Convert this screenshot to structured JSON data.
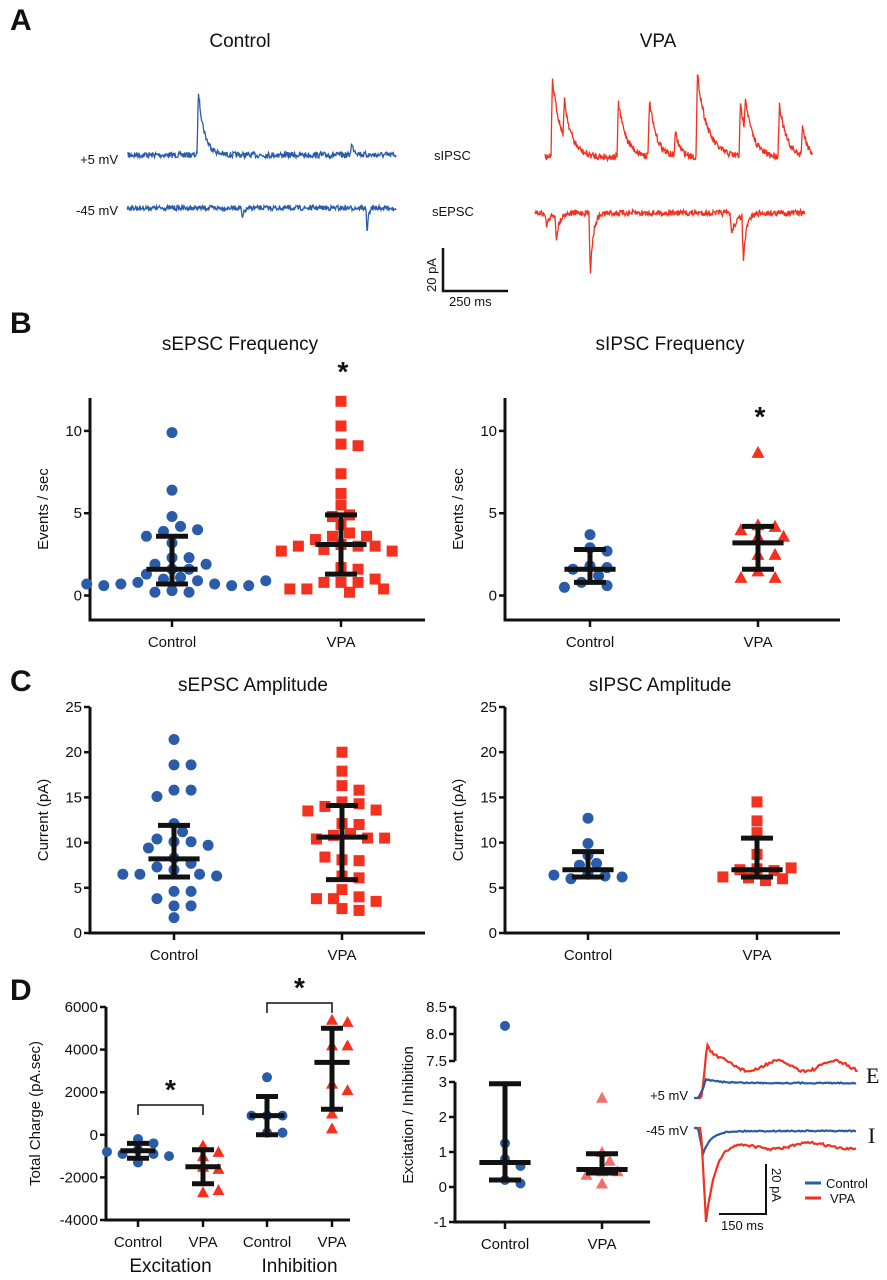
{
  "colors": {
    "control": "#2a5caa",
    "vpa": "#f4301e",
    "vpa_light": "#f07070",
    "axis": "#111111"
  },
  "panel_labels": [
    "A",
    "B",
    "C",
    "D"
  ],
  "panelA": {
    "control_title": "Control",
    "vpa_title": "VPA",
    "row_labels": [
      "+5 mV",
      "-45 mV"
    ],
    "trace_labels": [
      "sIPSC",
      "sEPSC"
    ],
    "scalebar": {
      "y_label": "20 pA",
      "x_label": "250 ms"
    }
  },
  "chart_data": [
    {
      "id": "sepsc_freq",
      "type": "scatter",
      "title": "sEPSC Frequency",
      "ylabel": "Events / sec",
      "ylim": [
        -1,
        12
      ],
      "yticks": [
        0,
        5,
        10
      ],
      "categories": [
        "Control",
        "VPA"
      ],
      "significance": [
        "",
        "*"
      ],
      "series": [
        {
          "name": "Control",
          "marker": "circle",
          "values": [
            9.9,
            6.4,
            4.8,
            4.2,
            3.9,
            4.0,
            3.6,
            3.2,
            2.3,
            2.3,
            1.9,
            1.9,
            1.6,
            1.6,
            1.3,
            1.1,
            1.0,
            0.9,
            0.8,
            0.7,
            0.7,
            0.6,
            0.6,
            0.6,
            0.7,
            0.9,
            0.3,
            0.2,
            0.2
          ],
          "median": 1.6,
          "iqr": [
            0.7,
            3.6
          ]
        },
        {
          "name": "VPA",
          "marker": "square",
          "values": [
            11.8,
            10.3,
            9.2,
            9.1,
            7.4,
            6.2,
            5.5,
            4.9,
            4.8,
            4.3,
            3.8,
            3.6,
            3.6,
            3.4,
            3.1,
            3.0,
            3.0,
            3.0,
            2.8,
            2.7,
            2.7,
            1.7,
            1.6,
            0.8,
            0.8,
            0.8,
            1.0,
            0.4,
            0.4,
            0.4,
            0.2
          ],
          "median": 3.1,
          "iqr": [
            1.3,
            4.9
          ]
        }
      ]
    },
    {
      "id": "sipsc_freq",
      "type": "scatter",
      "title": "sIPSC Frequency",
      "ylabel": "Events / sec",
      "ylim": [
        -1,
        12
      ],
      "yticks": [
        0,
        5,
        10
      ],
      "categories": [
        "Control",
        "VPA"
      ],
      "significance": [
        "",
        "*"
      ],
      "series": [
        {
          "name": "Control",
          "marker": "circle",
          "values": [
            3.7,
            2.9,
            2.7,
            1.8,
            1.7,
            1.6,
            1.2,
            0.8,
            0.6,
            0.5
          ],
          "median": 1.6,
          "iqr": [
            0.8,
            2.8
          ]
        },
        {
          "name": "VPA",
          "marker": "triangle",
          "values": [
            8.7,
            4.3,
            4.2,
            4.0,
            3.6,
            3.6,
            2.5,
            2.5,
            1.5,
            1.1,
            1.1
          ],
          "median": 3.2,
          "iqr": [
            1.6,
            4.2
          ]
        }
      ]
    },
    {
      "id": "sepsc_amp",
      "type": "scatter",
      "title": "sEPSC Amplitude",
      "ylabel": "Current (pA)",
      "ylim": [
        0,
        25
      ],
      "yticks": [
        0,
        5,
        10,
        15,
        20,
        25
      ],
      "categories": [
        "Control",
        "VPA"
      ],
      "significance": [
        "",
        ""
      ],
      "series": [
        {
          "name": "Control",
          "marker": "circle",
          "values": [
            21.4,
            18.6,
            18.6,
            15.8,
            15.8,
            15.1,
            12.1,
            11.2,
            10.1,
            10.1,
            10.4,
            9.7,
            9.4,
            8.3,
            7.7,
            7.0,
            7.3,
            6.5,
            6.5,
            6.3,
            6.5,
            4.6,
            4.6,
            3.8,
            3.0,
            3.0,
            1.7
          ],
          "median": 8.2,
          "iqr": [
            6.2,
            11.9
          ]
        },
        {
          "name": "VPA",
          "marker": "square",
          "values": [
            20.0,
            17.9,
            16.3,
            15.8,
            14.5,
            14.3,
            14.0,
            13.6,
            13.5,
            12.1,
            12.0,
            11.0,
            10.8,
            10.5,
            10.4,
            10.5,
            8.1,
            8.0,
            8.4,
            6.3,
            6.1,
            4.8,
            4.0,
            3.8,
            3.8,
            3.5,
            2.7,
            2.5
          ],
          "median": 10.6,
          "iqr": [
            5.9,
            14.1
          ]
        }
      ]
    },
    {
      "id": "sipsc_amp",
      "type": "scatter",
      "title": "sIPSC Amplitude",
      "ylabel": "Current (pA)",
      "ylim": [
        0,
        25
      ],
      "yticks": [
        0,
        5,
        10,
        15,
        20,
        25
      ],
      "categories": [
        "Control",
        "VPA"
      ],
      "significance": [
        "",
        ""
      ],
      "series": [
        {
          "name": "Control",
          "marker": "circle",
          "values": [
            12.7,
            9.9,
            8.6,
            7.7,
            7.5,
            6.5,
            6.3,
            6.0,
            6.2,
            6.4
          ],
          "median": 7.0,
          "iqr": [
            6.2,
            9.0
          ]
        },
        {
          "name": "VPA",
          "marker": "square",
          "values": [
            14.5,
            12.4,
            11.1,
            8.7,
            7.1,
            6.9,
            7.0,
            7.2,
            6.1,
            5.8,
            6.0,
            6.2
          ],
          "median": 7.0,
          "iqr": [
            6.2,
            10.5
          ]
        }
      ]
    },
    {
      "id": "total_charge",
      "type": "scatter",
      "title": "",
      "ylabel": "Total Charge (pA.sec)",
      "ylim": [
        -4000,
        6000
      ],
      "yticks": [
        -4000,
        -2000,
        0,
        2000,
        4000,
        6000
      ],
      "categories": [
        "Control",
        "VPA",
        "Control",
        "VPA"
      ],
      "group_labels": [
        "Excitation",
        "Inhibition"
      ],
      "brackets": [
        {
          "from": 0,
          "to": 1,
          "label": "*"
        },
        {
          "from": 2,
          "to": 3,
          "label": "*"
        }
      ],
      "series": [
        {
          "name": "Excitation Control",
          "marker": "circle",
          "values": [
            -200,
            -400,
            -700,
            -900,
            -900,
            -1000,
            -800,
            -1300
          ],
          "median": -750,
          "iqr": [
            -1100,
            -400
          ]
        },
        {
          "name": "Excitation VPA",
          "marker": "triangle",
          "values": [
            -500,
            -800,
            -1000,
            -1500,
            -1600,
            -2700,
            -2600
          ],
          "median": -1500,
          "iqr": [
            -2300,
            -700
          ]
        },
        {
          "name": "Inhibition Control",
          "marker": "circle",
          "values": [
            2700,
            900,
            900,
            900,
            100,
            100
          ],
          "median": 900,
          "iqr": [
            0,
            1800
          ]
        },
        {
          "name": "Inhibition VPA",
          "marker": "triangle",
          "values": [
            5400,
            5300,
            4200,
            4200,
            2400,
            2100,
            1000,
            300
          ],
          "median": 3400,
          "iqr": [
            1200,
            5000
          ]
        }
      ]
    },
    {
      "id": "ei_ratio",
      "type": "scatter",
      "title": "",
      "ylabel": "Excitation / Inhibition",
      "ylim": [
        -1,
        8.5
      ],
      "axis_break": [
        3,
        7.5
      ],
      "yticks": [
        -1,
        0,
        1,
        2,
        3,
        7.5,
        8.0,
        8.5
      ],
      "ytick_labels": [
        "-1",
        "0",
        "1",
        "2",
        "3",
        "7.5",
        "8.0",
        "8.5"
      ],
      "categories": [
        "Control",
        "VPA"
      ],
      "series": [
        {
          "name": "Control",
          "marker": "circle",
          "values": [
            8.15,
            1.25,
            0.8,
            0.6,
            0.2,
            0.1
          ],
          "median": 0.7,
          "iqr": [
            0.2,
            2.95
          ]
        },
        {
          "name": "VPA",
          "marker": "triangle",
          "values": [
            2.55,
            1.0,
            0.75,
            0.45,
            0.45,
            0.35,
            0.1
          ],
          "median": 0.5,
          "iqr": [
            0.4,
            0.95
          ]
        }
      ]
    }
  ],
  "panelD_traces": {
    "row_labels": [
      "+5 mV",
      "-45 mV"
    ],
    "side_labels": [
      "E",
      "I"
    ],
    "scalebar": {
      "y_label": "20 pA",
      "x_label": "150 ms"
    },
    "legend": [
      {
        "name": "Control"
      },
      {
        "name": "VPA"
      }
    ]
  }
}
